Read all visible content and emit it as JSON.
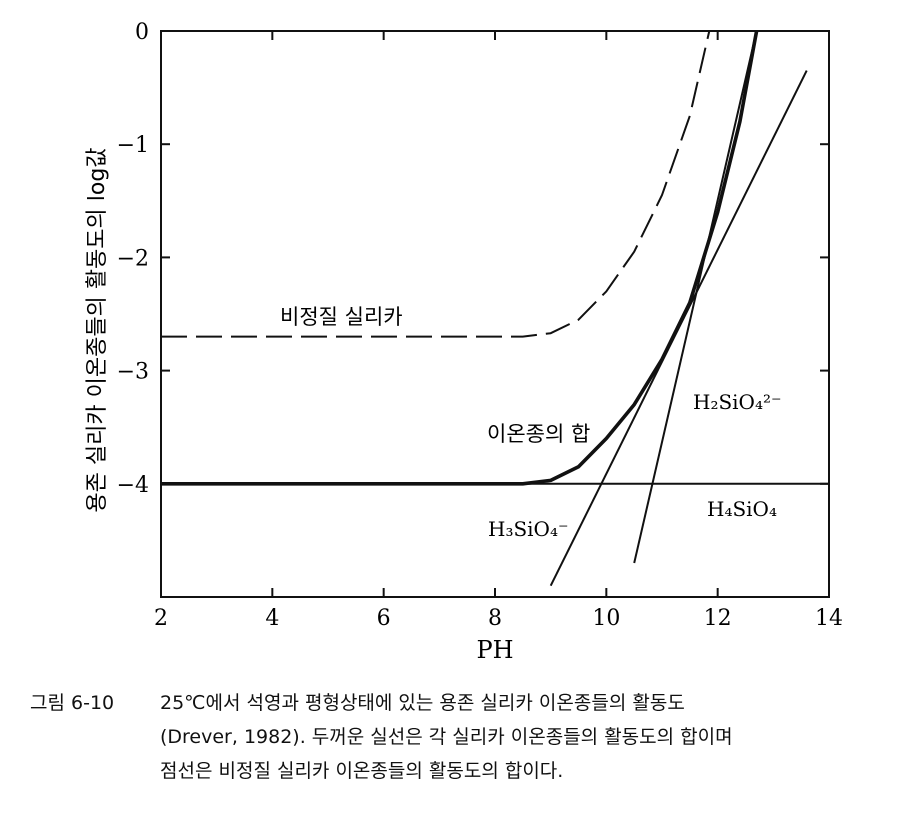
{
  "chart_data": {
    "type": "line",
    "xlabel": "PH",
    "ylabel": "용존 실리카 이온종들의 활동도의 log값",
    "xlim": [
      2,
      14
    ],
    "ylim": [
      -5,
      0
    ],
    "xticks": [
      "2",
      "4",
      "6",
      "8",
      "10",
      "12",
      "14"
    ],
    "yticks": [
      "0",
      "−1",
      "−2",
      "−3",
      "−4"
    ],
    "grid": false,
    "series": [
      {
        "name": "H₄SiO₄",
        "style": "solid",
        "points": [
          [
            2,
            -4.0
          ],
          [
            14,
            -4.0
          ]
        ]
      },
      {
        "name": "H₃SiO₄⁻",
        "style": "solid",
        "points": [
          [
            9.0,
            -4.9
          ],
          [
            13.6,
            -0.35
          ]
        ]
      },
      {
        "name": "H₂SiO₄²⁻",
        "style": "solid",
        "points": [
          [
            10.5,
            -4.7
          ],
          [
            12.7,
            0.0
          ]
        ]
      },
      {
        "name": "이온종의 합",
        "style": "bold",
        "points": [
          [
            2,
            -4.0
          ],
          [
            8.5,
            -4.0
          ],
          [
            9.0,
            -3.97
          ],
          [
            9.5,
            -3.85
          ],
          [
            10.0,
            -3.6
          ],
          [
            10.5,
            -3.3
          ],
          [
            11.0,
            -2.9
          ],
          [
            11.5,
            -2.4
          ],
          [
            12.0,
            -1.6
          ],
          [
            12.4,
            -0.8
          ],
          [
            12.7,
            0.0
          ]
        ]
      },
      {
        "name": "비정질 실리카",
        "style": "dashed",
        "points": [
          [
            2,
            -2.7
          ],
          [
            8.5,
            -2.7
          ],
          [
            9.0,
            -2.67
          ],
          [
            9.5,
            -2.55
          ],
          [
            10.0,
            -2.3
          ],
          [
            10.5,
            -1.95
          ],
          [
            11.0,
            -1.45
          ],
          [
            11.5,
            -0.75
          ],
          [
            11.85,
            0.0
          ]
        ]
      }
    ],
    "annotations": {
      "amorphous": "비정질 실리카",
      "sum": "이온종의 합",
      "h2sio4": "H₂SiO₄²⁻",
      "h4sio4": "H₄SiO₄",
      "h3sio4": "H₃SiO₄⁻"
    }
  },
  "caption": {
    "number": "그림 6-10",
    "line1": "25℃에서 석영과 평형상태에 있는 용존 실리카 이온종들의 활동도",
    "line2": "(Drever, 1982). 두꺼운 실선은 각 실리카 이온종들의 활동도의 합이며",
    "line3": "점선은 비정질 실리카 이온종들의 활동도의 합이다."
  }
}
